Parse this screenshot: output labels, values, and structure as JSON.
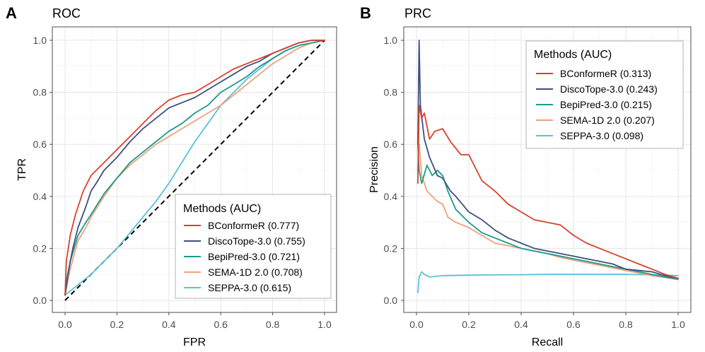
{
  "chart_data": [
    {
      "type": "line",
      "panel_letter": "A",
      "title": "ROC",
      "xlabel": "FPR",
      "ylabel": "TPR",
      "xlim": [
        0,
        1
      ],
      "ylim": [
        0,
        1
      ],
      "xticks": [
        "0.0",
        "0.2",
        "0.4",
        "0.6",
        "0.8",
        "1.0"
      ],
      "yticks": [
        "0.0",
        "0.2",
        "0.4",
        "0.6",
        "0.8",
        "1.0"
      ],
      "reference_line": "diagonal (0,0)-(1,1) dashed",
      "legend": {
        "title": "Methods (AUC)",
        "placement": "bottom-right",
        "entries": [
          "BConformeR (0.777)",
          "DiscoTope-3.0 (0.755)",
          "BepiPred-3.0 (0.721)",
          "SEMA-1D 2.0 (0.708)",
          "SEPPA-3.0 (0.615)"
        ]
      },
      "series": [
        {
          "name": "BConformeR",
          "color": "#d9412e",
          "points": [
            [
              0,
              0.02
            ],
            [
              0.005,
              0.15
            ],
            [
              0.02,
              0.25
            ],
            [
              0.04,
              0.33
            ],
            [
              0.07,
              0.42
            ],
            [
              0.1,
              0.48
            ],
            [
              0.15,
              0.53
            ],
            [
              0.2,
              0.58
            ],
            [
              0.25,
              0.63
            ],
            [
              0.3,
              0.68
            ],
            [
              0.35,
              0.73
            ],
            [
              0.4,
              0.77
            ],
            [
              0.45,
              0.79
            ],
            [
              0.5,
              0.8
            ],
            [
              0.55,
              0.83
            ],
            [
              0.6,
              0.86
            ],
            [
              0.65,
              0.89
            ],
            [
              0.7,
              0.91
            ],
            [
              0.75,
              0.93
            ],
            [
              0.8,
              0.95
            ],
            [
              0.85,
              0.97
            ],
            [
              0.9,
              0.99
            ],
            [
              0.95,
              1.0
            ],
            [
              1,
              1.0
            ]
          ]
        },
        {
          "name": "DiscoTope-3.0",
          "color": "#3d4f7e",
          "points": [
            [
              0,
              0.02
            ],
            [
              0.01,
              0.1
            ],
            [
              0.03,
              0.2
            ],
            [
              0.05,
              0.28
            ],
            [
              0.08,
              0.36
            ],
            [
              0.1,
              0.42
            ],
            [
              0.12,
              0.45
            ],
            [
              0.15,
              0.5
            ],
            [
              0.2,
              0.55
            ],
            [
              0.25,
              0.61
            ],
            [
              0.3,
              0.66
            ],
            [
              0.35,
              0.7
            ],
            [
              0.4,
              0.74
            ],
            [
              0.45,
              0.76
            ],
            [
              0.5,
              0.78
            ],
            [
              0.55,
              0.81
            ],
            [
              0.6,
              0.84
            ],
            [
              0.65,
              0.87
            ],
            [
              0.7,
              0.9
            ],
            [
              0.75,
              0.92
            ],
            [
              0.8,
              0.95
            ],
            [
              0.85,
              0.97
            ],
            [
              0.9,
              0.99
            ],
            [
              0.95,
              1.0
            ],
            [
              1,
              1.0
            ]
          ]
        },
        {
          "name": "BepiPred-3.0",
          "color": "#1a9b8a",
          "points": [
            [
              0,
              0.02
            ],
            [
              0.02,
              0.15
            ],
            [
              0.05,
              0.25
            ],
            [
              0.08,
              0.3
            ],
            [
              0.1,
              0.33
            ],
            [
              0.15,
              0.41
            ],
            [
              0.2,
              0.47
            ],
            [
              0.25,
              0.53
            ],
            [
              0.3,
              0.57
            ],
            [
              0.35,
              0.61
            ],
            [
              0.4,
              0.65
            ],
            [
              0.45,
              0.68
            ],
            [
              0.5,
              0.72
            ],
            [
              0.55,
              0.75
            ],
            [
              0.6,
              0.8
            ],
            [
              0.65,
              0.83
            ],
            [
              0.7,
              0.86
            ],
            [
              0.75,
              0.9
            ],
            [
              0.8,
              0.93
            ],
            [
              0.85,
              0.96
            ],
            [
              0.9,
              0.98
            ],
            [
              0.95,
              0.99
            ],
            [
              1,
              1.0
            ]
          ]
        },
        {
          "name": "SEMA-1D 2.0",
          "color": "#f0a07c",
          "points": [
            [
              0,
              0.02
            ],
            [
              0.02,
              0.12
            ],
            [
              0.05,
              0.23
            ],
            [
              0.08,
              0.28
            ],
            [
              0.1,
              0.32
            ],
            [
              0.15,
              0.4
            ],
            [
              0.2,
              0.47
            ],
            [
              0.25,
              0.52
            ],
            [
              0.3,
              0.56
            ],
            [
              0.35,
              0.6
            ],
            [
              0.4,
              0.63
            ],
            [
              0.45,
              0.66
            ],
            [
              0.5,
              0.69
            ],
            [
              0.55,
              0.72
            ],
            [
              0.6,
              0.75
            ],
            [
              0.65,
              0.79
            ],
            [
              0.7,
              0.83
            ],
            [
              0.75,
              0.87
            ],
            [
              0.8,
              0.91
            ],
            [
              0.85,
              0.94
            ],
            [
              0.9,
              0.97
            ],
            [
              0.95,
              0.99
            ],
            [
              1,
              1.0
            ]
          ]
        },
        {
          "name": "SEPPA-3.0",
          "color": "#5bc0d6",
          "points": [
            [
              0,
              0.02
            ],
            [
              0.05,
              0.06
            ],
            [
              0.1,
              0.1
            ],
            [
              0.15,
              0.15
            ],
            [
              0.2,
              0.2
            ],
            [
              0.25,
              0.26
            ],
            [
              0.3,
              0.32
            ],
            [
              0.35,
              0.38
            ],
            [
              0.4,
              0.45
            ],
            [
              0.45,
              0.53
            ],
            [
              0.5,
              0.61
            ],
            [
              0.55,
              0.68
            ],
            [
              0.6,
              0.75
            ],
            [
              0.65,
              0.8
            ],
            [
              0.7,
              0.85
            ],
            [
              0.75,
              0.89
            ],
            [
              0.8,
              0.93
            ],
            [
              0.85,
              0.96
            ],
            [
              0.9,
              0.98
            ],
            [
              0.95,
              0.99
            ],
            [
              1,
              1.0
            ]
          ]
        }
      ]
    },
    {
      "type": "line",
      "panel_letter": "B",
      "title": "PRC",
      "xlabel": "Recall",
      "ylabel": "Precision",
      "xlim": [
        0,
        1
      ],
      "ylim": [
        0,
        1
      ],
      "xticks": [
        "0.0",
        "0.2",
        "0.4",
        "0.6",
        "0.8",
        "1.0"
      ],
      "yticks": [
        "0.0",
        "0.2",
        "0.4",
        "0.6",
        "0.8",
        "1.0"
      ],
      "legend": {
        "title": "Methods (AUC)",
        "placement": "top-right",
        "entries": [
          "BConformeR (0.313)",
          "DiscoTope-3.0 (0.243)",
          "BepiPred-3.0 (0.215)",
          "SEMA-1D 2.0 (0.207)",
          "SEPPA-3.0 (0.098)"
        ]
      },
      "series": [
        {
          "name": "BConformeR",
          "color": "#d9412e",
          "points": [
            [
              0.005,
              0.45
            ],
            [
              0.01,
              0.75
            ],
            [
              0.02,
              0.7
            ],
            [
              0.03,
              0.72
            ],
            [
              0.05,
              0.62
            ],
            [
              0.07,
              0.65
            ],
            [
              0.1,
              0.66
            ],
            [
              0.13,
              0.61
            ],
            [
              0.17,
              0.56
            ],
            [
              0.2,
              0.56
            ],
            [
              0.23,
              0.5
            ],
            [
              0.25,
              0.46
            ],
            [
              0.3,
              0.42
            ],
            [
              0.35,
              0.37
            ],
            [
              0.4,
              0.34
            ],
            [
              0.45,
              0.31
            ],
            [
              0.5,
              0.3
            ],
            [
              0.55,
              0.29
            ],
            [
              0.6,
              0.25
            ],
            [
              0.65,
              0.22
            ],
            [
              0.7,
              0.2
            ],
            [
              0.75,
              0.18
            ],
            [
              0.8,
              0.16
            ],
            [
              0.85,
              0.14
            ],
            [
              0.9,
              0.12
            ],
            [
              0.95,
              0.1
            ],
            [
              1,
              0.085
            ]
          ]
        },
        {
          "name": "DiscoTope-3.0",
          "color": "#3d4f7e",
          "points": [
            [
              0.005,
              0.6
            ],
            [
              0.01,
              1.0
            ],
            [
              0.015,
              0.75
            ],
            [
              0.03,
              0.62
            ],
            [
              0.05,
              0.55
            ],
            [
              0.08,
              0.48
            ],
            [
              0.1,
              0.47
            ],
            [
              0.13,
              0.42
            ],
            [
              0.15,
              0.4
            ],
            [
              0.2,
              0.34
            ],
            [
              0.25,
              0.31
            ],
            [
              0.3,
              0.27
            ],
            [
              0.35,
              0.24
            ],
            [
              0.4,
              0.22
            ],
            [
              0.45,
              0.2
            ],
            [
              0.5,
              0.19
            ],
            [
              0.55,
              0.18
            ],
            [
              0.6,
              0.17
            ],
            [
              0.65,
              0.16
            ],
            [
              0.7,
              0.15
            ],
            [
              0.75,
              0.14
            ],
            [
              0.8,
              0.12
            ],
            [
              0.85,
              0.115
            ],
            [
              0.9,
              0.11
            ],
            [
              0.95,
              0.095
            ],
            [
              1,
              0.085
            ]
          ]
        },
        {
          "name": "BepiPred-3.0",
          "color": "#1a9b8a",
          "points": [
            [
              0.005,
              0.6
            ],
            [
              0.01,
              0.5
            ],
            [
              0.02,
              0.45
            ],
            [
              0.04,
              0.52
            ],
            [
              0.06,
              0.48
            ],
            [
              0.08,
              0.5
            ],
            [
              0.1,
              0.48
            ],
            [
              0.12,
              0.42
            ],
            [
              0.15,
              0.35
            ],
            [
              0.2,
              0.3
            ],
            [
              0.25,
              0.26
            ],
            [
              0.3,
              0.24
            ],
            [
              0.35,
              0.22
            ],
            [
              0.4,
              0.2
            ],
            [
              0.45,
              0.19
            ],
            [
              0.5,
              0.18
            ],
            [
              0.55,
              0.17
            ],
            [
              0.6,
              0.16
            ],
            [
              0.65,
              0.15
            ],
            [
              0.7,
              0.14
            ],
            [
              0.75,
              0.13
            ],
            [
              0.8,
              0.12
            ],
            [
              0.85,
              0.11
            ],
            [
              0.9,
              0.1
            ],
            [
              0.95,
              0.09
            ],
            [
              1,
              0.082
            ]
          ]
        },
        {
          "name": "SEMA-1D 2.0",
          "color": "#f0a07c",
          "points": [
            [
              0.005,
              0.5
            ],
            [
              0.01,
              0.6
            ],
            [
              0.02,
              0.48
            ],
            [
              0.04,
              0.42
            ],
            [
              0.06,
              0.4
            ],
            [
              0.08,
              0.38
            ],
            [
              0.1,
              0.37
            ],
            [
              0.12,
              0.32
            ],
            [
              0.15,
              0.3
            ],
            [
              0.2,
              0.28
            ],
            [
              0.25,
              0.25
            ],
            [
              0.3,
              0.22
            ],
            [
              0.35,
              0.21
            ],
            [
              0.4,
              0.2
            ],
            [
              0.45,
              0.19
            ],
            [
              0.5,
              0.18
            ],
            [
              0.55,
              0.165
            ],
            [
              0.6,
              0.155
            ],
            [
              0.65,
              0.145
            ],
            [
              0.7,
              0.135
            ],
            [
              0.75,
              0.125
            ],
            [
              0.8,
              0.115
            ],
            [
              0.85,
              0.105
            ],
            [
              0.9,
              0.095
            ],
            [
              0.95,
              0.088
            ],
            [
              1,
              0.08
            ]
          ]
        },
        {
          "name": "SEPPA-3.0",
          "color": "#5bc0d6",
          "points": [
            [
              0.005,
              0.03
            ],
            [
              0.01,
              0.09
            ],
            [
              0.02,
              0.11
            ],
            [
              0.03,
              0.1
            ],
            [
              0.05,
              0.09
            ],
            [
              0.1,
              0.095
            ],
            [
              0.2,
              0.097
            ],
            [
              0.3,
              0.098
            ],
            [
              0.4,
              0.099
            ],
            [
              0.5,
              0.1
            ],
            [
              0.6,
              0.1
            ],
            [
              0.7,
              0.1
            ],
            [
              0.8,
              0.1
            ],
            [
              0.9,
              0.098
            ],
            [
              1,
              0.095
            ]
          ]
        }
      ]
    }
  ]
}
